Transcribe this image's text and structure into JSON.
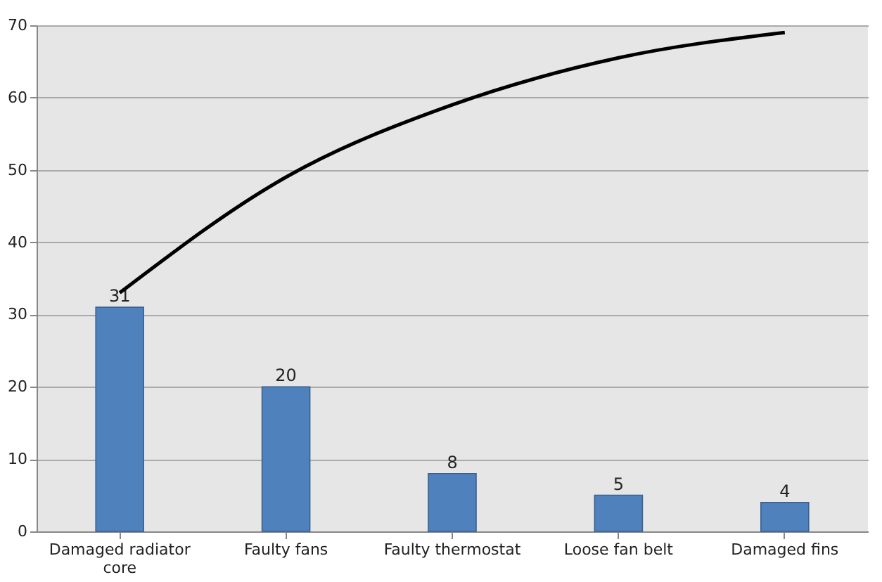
{
  "chart_data": {
    "type": "bar",
    "categories": [
      "Damaged radiator core",
      "Faulty fans",
      "Faulty thermostat",
      "Loose fan belt",
      "Damaged fins"
    ],
    "series": [
      {
        "color": "#4f81bd",
        "values": [
          31,
          20,
          8,
          5,
          4
        ],
        "value_labels": [
          "31",
          "20",
          "8",
          "5",
          "4"
        ]
      },
      {
        "type": "line",
        "color": "#000000",
        "values": [
          33,
          49,
          59,
          65.5,
          69
        ]
      }
    ],
    "ylim": [
      0,
      70
    ],
    "yticks": [
      0,
      10,
      20,
      30,
      40,
      50,
      60,
      70
    ],
    "grid": "y"
  }
}
